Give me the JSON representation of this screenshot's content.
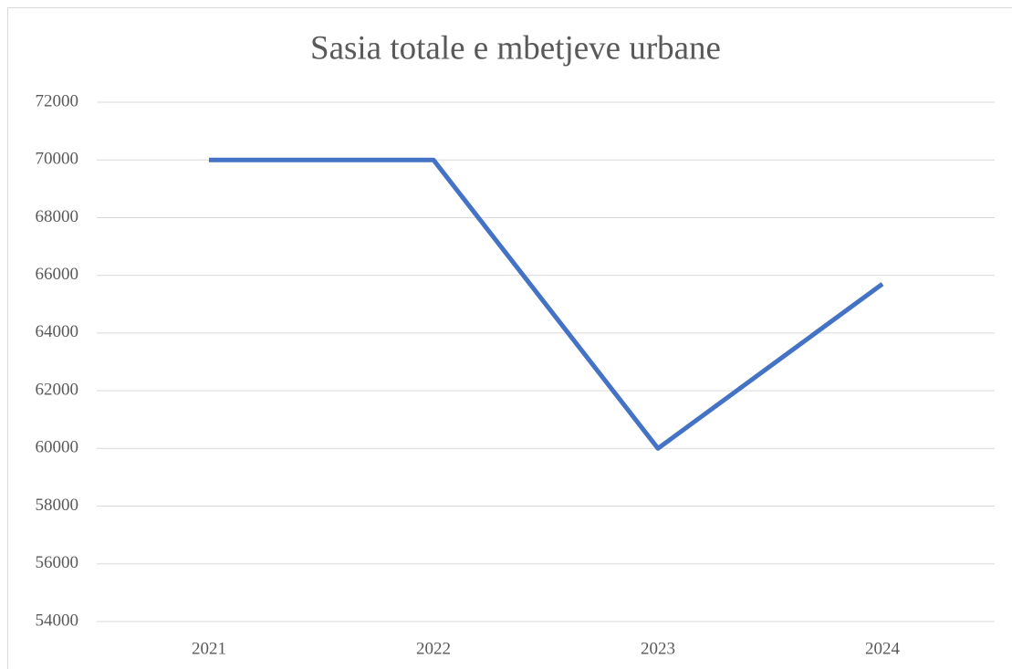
{
  "chart_data": {
    "type": "line",
    "title": "Sasia totale e mbetjeve urbane",
    "categories": [
      "2021",
      "2022",
      "2023",
      "2024"
    ],
    "values": [
      70000,
      70000,
      60000,
      65700
    ],
    "color": "#4472c4",
    "ylim": [
      54000,
      72000
    ],
    "yticks": [
      54000,
      56000,
      58000,
      60000,
      62000,
      64000,
      66000,
      68000,
      70000,
      72000
    ],
    "grid": true
  }
}
